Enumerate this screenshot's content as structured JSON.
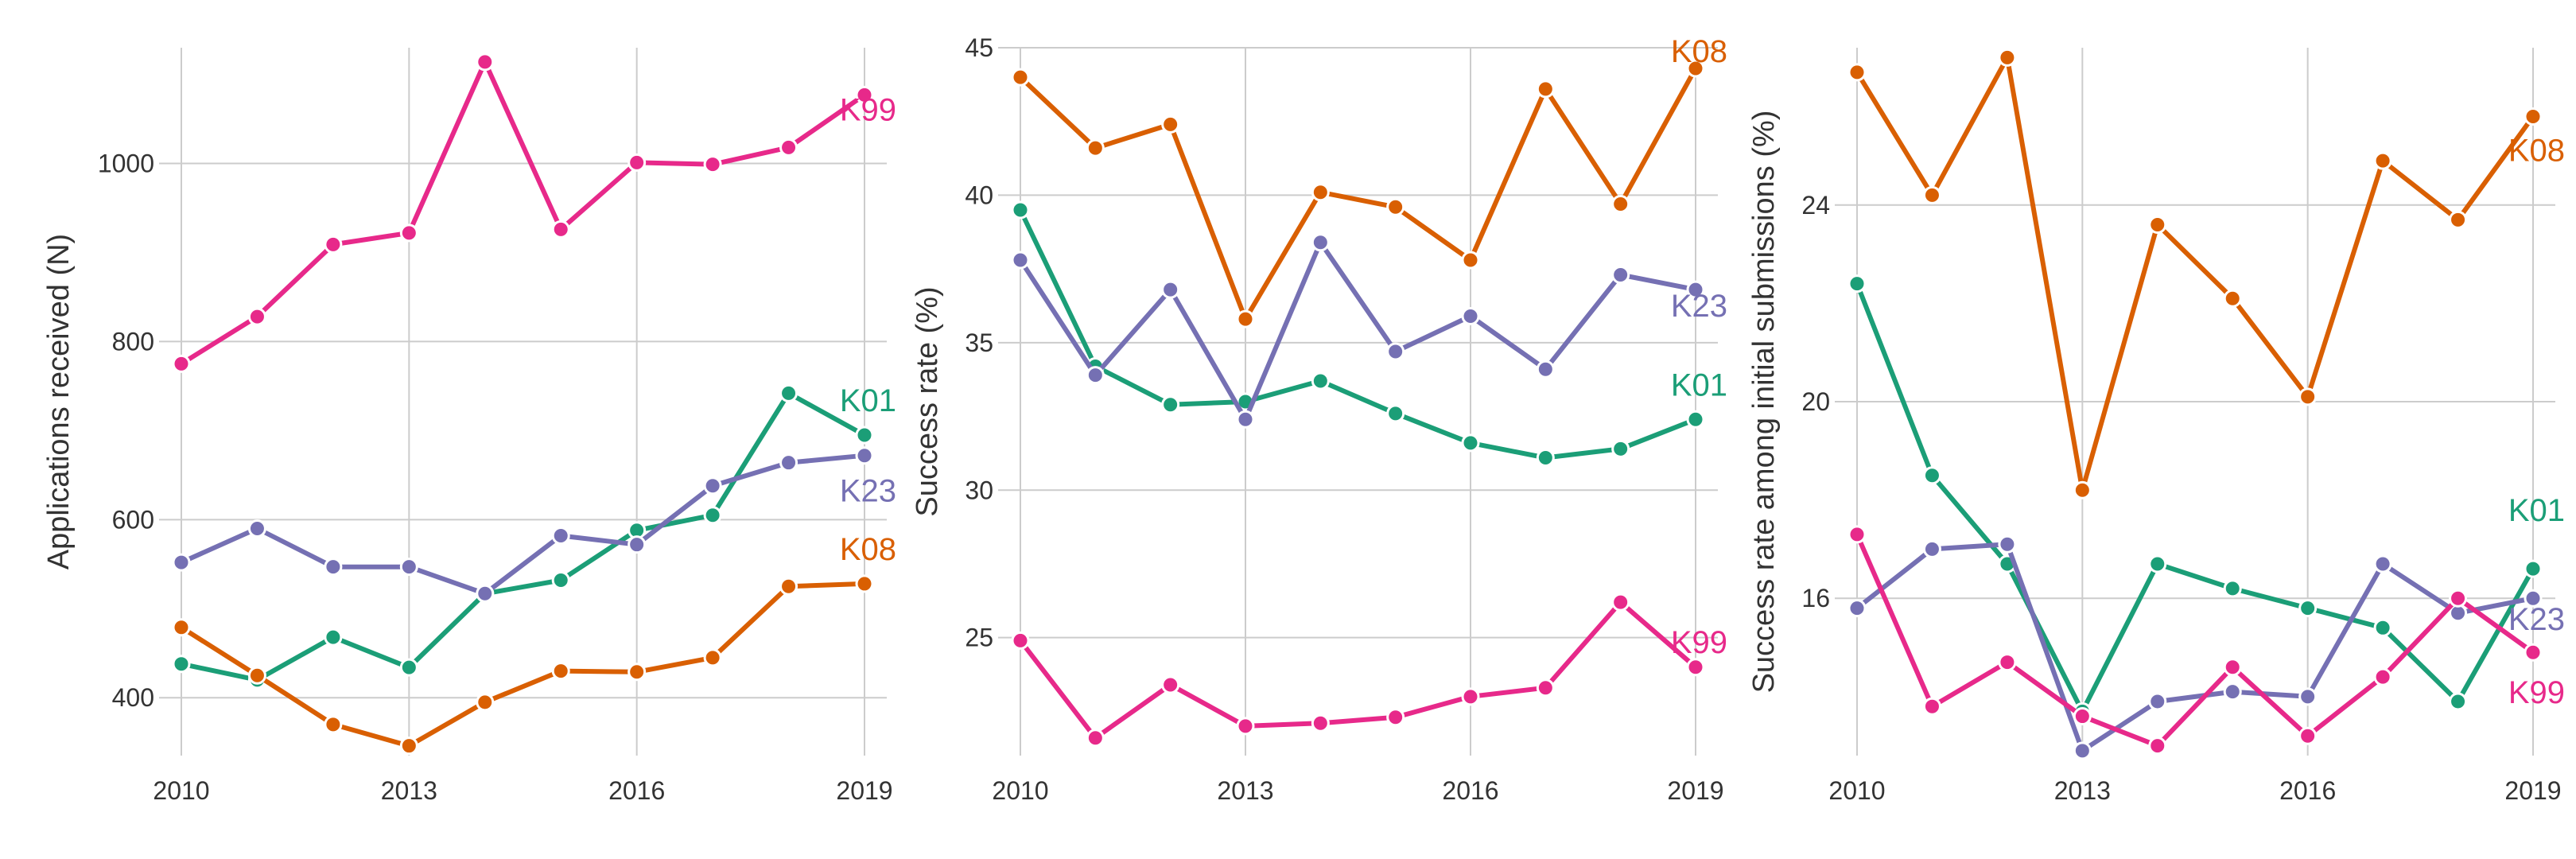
{
  "chart_data": [
    {
      "type": "line",
      "ylabel": "Applications received (N)",
      "xlabel": "",
      "x": [
        2010,
        2011,
        2012,
        2013,
        2014,
        2015,
        2016,
        2017,
        2018,
        2019
      ],
      "xticks": [
        "2010",
        "2013",
        "2016",
        "2019"
      ],
      "yticks": [
        "400",
        "600",
        "800",
        "1000"
      ],
      "ylim": [
        335,
        1130
      ],
      "grid": true,
      "series": [
        {
          "name": "K01",
          "color": "#1b9e77",
          "values": [
            438,
            420,
            468,
            434,
            517,
            532,
            588,
            605,
            742,
            695
          ]
        },
        {
          "name": "K08",
          "color": "#d95f02",
          "values": [
            479,
            425,
            370,
            346,
            395,
            430,
            429,
            445,
            525,
            528
          ]
        },
        {
          "name": "K23",
          "color": "#7570b3",
          "values": [
            552,
            590,
            547,
            547,
            517,
            582,
            572,
            638,
            664,
            672
          ]
        },
        {
          "name": "K99",
          "color": "#e7298a",
          "values": [
            775,
            828,
            909,
            922,
            1114,
            926,
            1001,
            999,
            1018,
            1077
          ]
        }
      ]
    },
    {
      "type": "line",
      "ylabel": "Success rate (%)",
      "xlabel": "",
      "x": [
        2010,
        2011,
        2012,
        2013,
        2014,
        2015,
        2016,
        2017,
        2018,
        2019
      ],
      "xticks": [
        "2010",
        "2013",
        "2016",
        "2019"
      ],
      "yticks": [
        "25",
        "30",
        "35",
        "40",
        "45"
      ],
      "ylim": [
        21.0,
        45.0
      ],
      "grid": true,
      "series": [
        {
          "name": "K01",
          "color": "#1b9e77",
          "values": [
            39.5,
            34.2,
            32.9,
            33.0,
            33.7,
            32.6,
            31.6,
            31.1,
            31.4,
            32.4
          ]
        },
        {
          "name": "K08",
          "color": "#d95f02",
          "values": [
            44.0,
            41.6,
            42.4,
            35.8,
            40.1,
            39.6,
            37.8,
            43.6,
            39.7,
            44.3
          ]
        },
        {
          "name": "K23",
          "color": "#7570b3",
          "values": [
            37.8,
            33.9,
            36.8,
            32.4,
            38.4,
            34.7,
            35.9,
            34.1,
            37.3,
            36.8
          ]
        },
        {
          "name": "K99",
          "color": "#e7298a",
          "values": [
            24.9,
            21.6,
            23.4,
            22.0,
            22.1,
            22.3,
            23.0,
            23.3,
            26.2,
            24.0
          ]
        }
      ]
    },
    {
      "type": "line",
      "ylabel": "Success rate among initial submissions (%)",
      "xlabel": "",
      "x": [
        2010,
        2011,
        2012,
        2013,
        2014,
        2015,
        2016,
        2017,
        2018,
        2019
      ],
      "xticks": [
        "2010",
        "2013",
        "2016",
        "2019"
      ],
      "yticks": [
        "16",
        "20",
        "24"
      ],
      "ylim": [
        12.8,
        27.2
      ],
      "grid": true,
      "series": [
        {
          "name": "K01",
          "color": "#1b9e77",
          "values": [
            22.4,
            18.5,
            16.7,
            13.7,
            16.7,
            16.2,
            15.8,
            15.4,
            13.9,
            16.6
          ]
        },
        {
          "name": "K08",
          "color": "#d95f02",
          "values": [
            26.7,
            24.2,
            27.0,
            18.2,
            23.6,
            22.1,
            20.1,
            24.9,
            23.7,
            25.8
          ]
        },
        {
          "name": "K23",
          "color": "#7570b3",
          "values": [
            15.8,
            17.0,
            17.1,
            12.9,
            13.9,
            14.1,
            14.0,
            16.7,
            15.7,
            16.0
          ]
        },
        {
          "name": "K99",
          "color": "#e7298a",
          "values": [
            17.3,
            13.8,
            14.7,
            13.6,
            13.0,
            14.6,
            13.2,
            14.4,
            16.0,
            14.9
          ]
        }
      ]
    }
  ]
}
